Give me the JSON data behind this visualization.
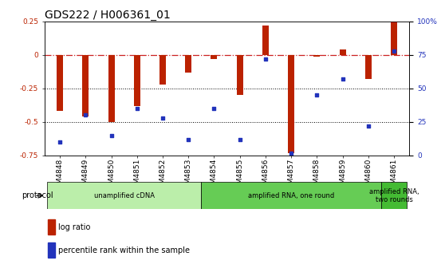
{
  "title": "GDS222 / H006361_01",
  "samples": [
    "GSM4848",
    "GSM4849",
    "GSM4850",
    "GSM4851",
    "GSM4852",
    "GSM4853",
    "GSM4854",
    "GSM4855",
    "GSM4856",
    "GSM4857",
    "GSM4858",
    "GSM4859",
    "GSM4860",
    "GSM4861"
  ],
  "log_ratio": [
    -0.42,
    -0.46,
    -0.5,
    -0.38,
    -0.22,
    -0.13,
    -0.03,
    -0.3,
    0.22,
    -0.73,
    -0.01,
    0.04,
    -0.18,
    0.25
  ],
  "percentile": [
    10,
    30,
    15,
    35,
    28,
    12,
    35,
    12,
    72,
    2,
    45,
    57,
    22,
    78
  ],
  "ylim_left": [
    -0.75,
    0.25
  ],
  "ylim_right": [
    0,
    100
  ],
  "bar_color": "#bb2200",
  "dot_color": "#2233bb",
  "zero_line_color": "#cc2222",
  "grid_color": "#000000",
  "bg_color": "#ffffff",
  "protocol_groups": [
    {
      "label": "unamplified cDNA",
      "start": 0,
      "end": 5,
      "color": "#bbeeaa"
    },
    {
      "label": "amplified RNA, one round",
      "start": 6,
      "end": 12,
      "color": "#66cc55"
    },
    {
      "label": "amplified RNA,\ntwo rounds",
      "start": 13,
      "end": 13,
      "color": "#44bb33"
    }
  ],
  "protocol_label": "protocol",
  "legend_items": [
    {
      "label": "log ratio",
      "color": "#bb2200"
    },
    {
      "label": "percentile rank within the sample",
      "color": "#2233bb"
    }
  ],
  "title_fontsize": 10,
  "tick_fontsize": 6.5,
  "bar_width": 0.25
}
